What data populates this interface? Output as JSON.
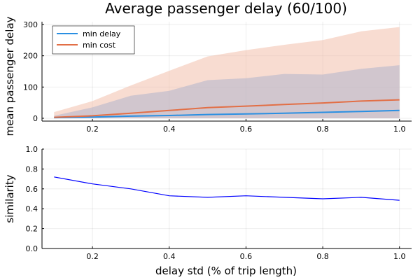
{
  "chart_data": [
    {
      "type": "line",
      "title": "Average passenger delay (60/100)",
      "xlabel": "",
      "ylabel": "mean passenger delay",
      "xlim": [
        0.1,
        1.0
      ],
      "ylim": [
        0,
        300
      ],
      "x_ticks": [
        "0.2",
        "0.4",
        "0.6",
        "0.8",
        "1.0"
      ],
      "y_ticks": [
        "0",
        "100",
        "200",
        "300"
      ],
      "grid": true,
      "legend_position": "top-left",
      "x": [
        0.1,
        0.2,
        0.3,
        0.4,
        0.5,
        0.6,
        0.7,
        0.8,
        0.9,
        1.0
      ],
      "series": [
        {
          "name": "min delay",
          "color": "#2a8fe2",
          "band_color": "#aab0cc",
          "values": [
            2,
            4,
            7,
            9,
            12,
            14,
            16,
            19,
            22,
            25
          ],
          "band_low": [
            0,
            0,
            0,
            0,
            0,
            0,
            0,
            0,
            0,
            0
          ],
          "band_high": [
            8,
            35,
            72,
            88,
            122,
            128,
            142,
            140,
            158,
            170
          ]
        },
        {
          "name": "min cost",
          "color": "#e26f46",
          "band_color": "#f2b9a4",
          "values": [
            3,
            8,
            16,
            25,
            34,
            39,
            44,
            49,
            55,
            59
          ],
          "band_low": [
            0,
            0,
            0,
            0,
            0,
            0,
            0,
            0,
            0,
            0
          ],
          "band_high": [
            20,
            55,
            105,
            152,
            198,
            218,
            235,
            250,
            278,
            292
          ]
        }
      ]
    },
    {
      "type": "line",
      "title": "",
      "xlabel": "delay std (% of trip length)",
      "ylabel": "similarity",
      "xlim": [
        0.1,
        1.0
      ],
      "ylim": [
        0.0,
        1.0
      ],
      "x_ticks": [
        "0.2",
        "0.4",
        "0.6",
        "0.8",
        "1.0"
      ],
      "y_ticks": [
        "0.0",
        "0.2",
        "0.4",
        "0.6",
        "0.8",
        "1.0"
      ],
      "grid": true,
      "x": [
        0.1,
        0.2,
        0.3,
        0.4,
        0.5,
        0.6,
        0.7,
        0.8,
        0.9,
        1.0
      ],
      "series": [
        {
          "color": "#0000ff",
          "values": [
            0.72,
            0.65,
            0.6,
            0.53,
            0.515,
            0.53,
            0.515,
            0.5,
            0.515,
            0.485
          ]
        }
      ]
    }
  ]
}
